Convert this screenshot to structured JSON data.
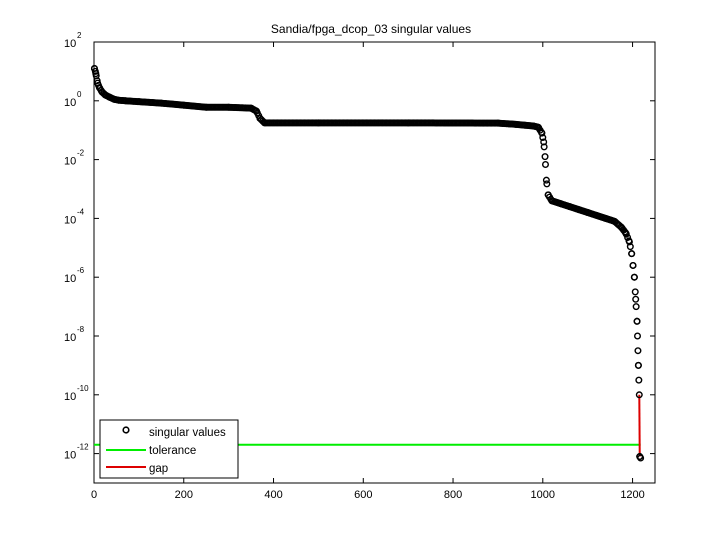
{
  "chart_data": {
    "type": "scatter",
    "title": "Sandia/fpga_dcop_03 singular values",
    "xlabel": "",
    "ylabel": "",
    "xlim": [
      0,
      1250
    ],
    "ylim_log10": [
      -13,
      2
    ],
    "y_scale": "log",
    "grid": false,
    "legend_position": "bottom-left",
    "x_ticks": [
      0,
      200,
      400,
      600,
      800,
      1000,
      1200
    ],
    "y_ticks": [
      {
        "base": "10",
        "exp": "2",
        "value": 2
      },
      {
        "base": "10",
        "exp": "0",
        "value": 0
      },
      {
        "base": "10",
        "exp": "-2",
        "value": -2
      },
      {
        "base": "10",
        "exp": "-4",
        "value": -4
      },
      {
        "base": "10",
        "exp": "-6",
        "value": -6
      },
      {
        "base": "10",
        "exp": "-8",
        "value": -8
      },
      {
        "base": "10",
        "exp": "-10",
        "value": -10
      },
      {
        "base": "10",
        "exp": "-12",
        "value": -12
      }
    ],
    "series": [
      {
        "name": "singular values",
        "marker": "circle",
        "color": "#000000",
        "x_log10_y": [
          [
            1,
            1.1
          ],
          [
            3,
            1.0
          ],
          [
            5,
            0.85
          ],
          [
            8,
            0.6
          ],
          [
            12,
            0.45
          ],
          [
            18,
            0.3
          ],
          [
            25,
            0.2
          ],
          [
            35,
            0.12
          ],
          [
            45,
            0.05
          ],
          [
            55,
            0.02
          ],
          [
            70,
            0.0
          ],
          [
            100,
            -0.03
          ],
          [
            150,
            -0.08
          ],
          [
            200,
            -0.15
          ],
          [
            250,
            -0.22
          ],
          [
            300,
            -0.22
          ],
          [
            350,
            -0.25
          ],
          [
            362,
            -0.35
          ],
          [
            370,
            -0.6
          ],
          [
            380,
            -0.75
          ],
          [
            500,
            -0.75
          ],
          [
            700,
            -0.75
          ],
          [
            900,
            -0.76
          ],
          [
            940,
            -0.8
          ],
          [
            960,
            -0.83
          ],
          [
            980,
            -0.86
          ],
          [
            990,
            -0.9
          ],
          [
            998,
            -1.1
          ],
          [
            1002,
            -1.4
          ],
          [
            1005,
            -1.9
          ],
          [
            1008,
            -2.7
          ],
          [
            1012,
            -3.2
          ],
          [
            1020,
            -3.4
          ],
          [
            1040,
            -3.5
          ],
          [
            1060,
            -3.6
          ],
          [
            1080,
            -3.7
          ],
          [
            1100,
            -3.8
          ],
          [
            1120,
            -3.9
          ],
          [
            1140,
            -4.0
          ],
          [
            1160,
            -4.1
          ],
          [
            1175,
            -4.3
          ],
          [
            1185,
            -4.5
          ],
          [
            1193,
            -4.8
          ],
          [
            1198,
            -5.2
          ],
          [
            1201,
            -5.6
          ],
          [
            1204,
            -6.0
          ],
          [
            1206,
            -6.5
          ],
          [
            1208,
            -7.0
          ],
          [
            1210,
            -7.5
          ],
          [
            1211,
            -8.0
          ],
          [
            1212,
            -8.5
          ],
          [
            1213,
            -9.0
          ],
          [
            1214,
            -9.5
          ],
          [
            1215,
            -10.0
          ],
          [
            1216,
            -12.1
          ],
          [
            1218,
            -12.15
          ]
        ]
      },
      {
        "name": "tolerance",
        "color": "#00ee00",
        "x": [
          0,
          1218
        ],
        "log10_y": [
          -11.7,
          -11.7
        ]
      },
      {
        "name": "gap",
        "color": "#dd0000",
        "x": [
          1215,
          1216
        ],
        "log10_y": [
          -10.0,
          -12.1
        ]
      }
    ]
  }
}
